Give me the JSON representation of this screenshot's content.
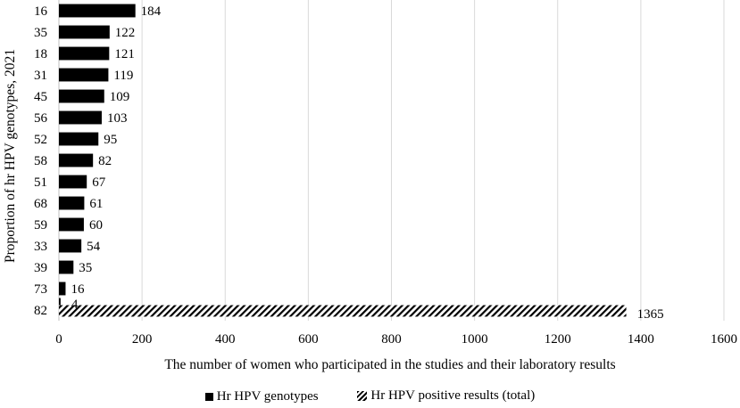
{
  "chart_data": {
    "type": "bar",
    "orientation": "horizontal",
    "categories": [
      "16",
      "35",
      "18",
      "31",
      "45",
      "56",
      "52",
      "58",
      "51",
      "68",
      "59",
      "33",
      "39",
      "73",
      "82"
    ],
    "series": [
      {
        "name": "Hr HPV genotypes",
        "style": "solid",
        "values": [
          184,
          122,
          121,
          119,
          109,
          103,
          95,
          82,
          67,
          61,
          60,
          54,
          35,
          16,
          4
        ]
      },
      {
        "name": "Hr HPV positive results (total)",
        "style": "hatched",
        "values": [
          null,
          null,
          null,
          null,
          null,
          null,
          null,
          null,
          null,
          null,
          null,
          null,
          null,
          null,
          1365
        ]
      }
    ],
    "data_labels": [
      "184",
      "122",
      "121",
      "119",
      "109",
      "103",
      "95",
      "82",
      "67",
      "61",
      "60",
      "54",
      "35",
      "16",
      "4",
      "1365"
    ],
    "xlim": [
      0,
      1600
    ],
    "xticks": [
      "0",
      "200",
      "400",
      "600",
      "800",
      "1000",
      "1200",
      "1400",
      "1600"
    ],
    "xlabel": "The number of women who participated in the studies and their laboratory results",
    "ylabel": "Proportion of hr HPV genotypes, 2021",
    "grid": "vertical",
    "legend_position": "bottom",
    "colors": {
      "bar": "#000000",
      "grid": "#d9d9d9",
      "axis": "#bfbfbf"
    }
  }
}
